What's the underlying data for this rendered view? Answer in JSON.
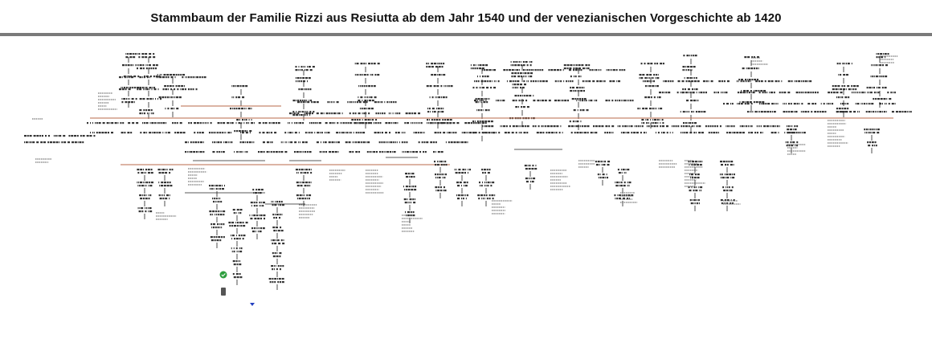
{
  "page": {
    "title": "Stammbaum der Familie Rizzi aus Resiutta ab dem Jahr 1540 und der venezianischen Vorgeschichte ab 1420"
  },
  "colors": {
    "rule": "#7a7a7a",
    "lineage_line": "#b86a4a",
    "node": "#333333",
    "badge_green": "#2e9e3e",
    "badge_blue": "#2440c0",
    "badge_gray": "#555555"
  },
  "diagram": {
    "type": "family-tree",
    "labels_legible": false,
    "badges": [
      {
        "kind": "check",
        "color_key": "badge_green"
      },
      {
        "kind": "person-marker",
        "color_key": "badge_gray"
      },
      {
        "kind": "arrow-down",
        "color_key": "badge_blue"
      }
    ]
  }
}
